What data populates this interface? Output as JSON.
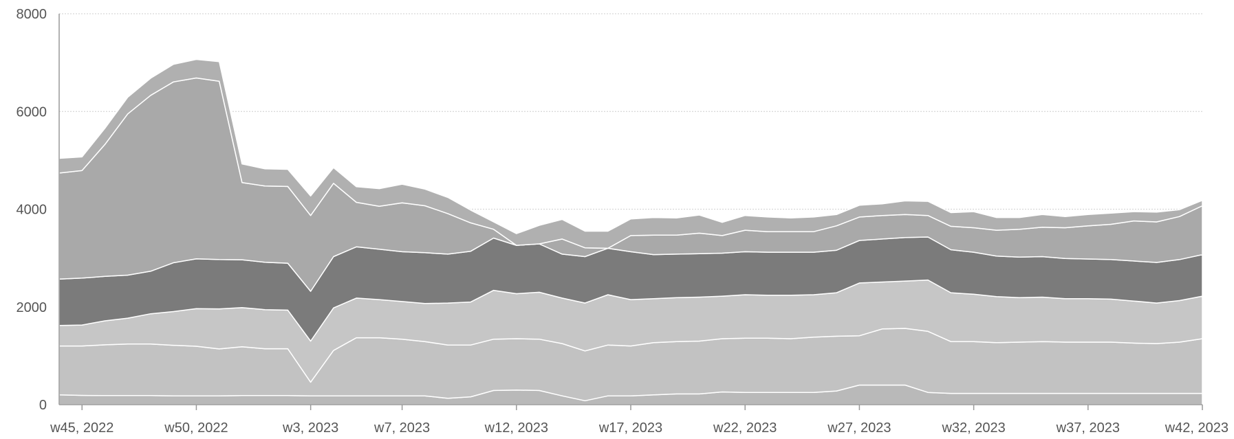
{
  "chart_data": {
    "type": "area",
    "stacked": true,
    "title": "",
    "xlabel": "",
    "ylabel": "",
    "ylim": [
      0,
      8000
    ],
    "y_ticks": [
      0,
      2000,
      4000,
      6000,
      8000
    ],
    "grid": true,
    "legend": "none",
    "x": [
      "w44, 2022",
      "w45, 2022",
      "w46, 2022",
      "w47, 2022",
      "w48, 2022",
      "w49, 2022",
      "w50, 2022",
      "w51, 2022",
      "w52, 2022",
      "w1, 2023",
      "w2, 2023",
      "w3, 2023",
      "w4, 2023",
      "w5, 2023",
      "w6, 2023",
      "w7, 2023",
      "w8, 2023",
      "w9, 2023",
      "w10, 2023",
      "w11, 2023",
      "w12, 2023",
      "w13, 2023",
      "w14, 2023",
      "w15, 2023",
      "w16, 2023",
      "w17, 2023",
      "w18, 2023",
      "w19, 2023",
      "w20, 2023",
      "w21, 2023",
      "w22, 2023",
      "w23, 2023",
      "w24, 2023",
      "w25, 2023",
      "w26, 2023",
      "w27, 2023",
      "w28, 2023",
      "w29, 2023",
      "w30, 2023",
      "w31, 2023",
      "w32, 2023",
      "w33, 2023",
      "w34, 2023",
      "w35, 2023",
      "w36, 2023",
      "w37, 2023",
      "w38, 2023",
      "w39, 2023",
      "w40, 2023",
      "w41, 2023",
      "w42, 2023"
    ],
    "x_tick_labels": [
      "w45, 2022",
      "w50, 2022",
      "w3, 2023",
      "w7, 2023",
      "w12, 2023",
      "w17, 2023",
      "w22, 2023",
      "w27, 2023",
      "w32, 2023",
      "w37, 2023",
      "w42, 2023"
    ],
    "colors": [
      "#b9b9b9",
      "#c2c2c2",
      "#c6c6c6",
      "#7b7b7b",
      "#a9a9a9",
      "#b0b0b0"
    ],
    "series": [
      {
        "values": [
          200,
          190,
          185,
          185,
          185,
          180,
          180,
          180,
          185,
          185,
          185,
          180,
          180,
          180,
          180,
          180,
          180,
          130,
          160,
          290,
          300,
          290,
          180,
          80,
          180,
          180,
          200,
          220,
          220,
          260,
          250,
          250,
          250,
          250,
          280,
          400,
          400,
          400,
          250,
          230,
          230,
          230,
          230,
          230,
          230,
          230,
          230,
          230,
          230,
          230,
          230
        ]
      },
      {
        "values": [
          1000,
          1010,
          1040,
          1055,
          1055,
          1035,
          1015,
          960,
          1000,
          960,
          960,
          280,
          930,
          1190,
          1190,
          1160,
          1110,
          1090,
          1060,
          1050,
          1050,
          1050,
          1070,
          1020,
          1040,
          1020,
          1070,
          1070,
          1080,
          1090,
          1110,
          1110,
          1100,
          1130,
          1120,
          1010,
          1150,
          1160,
          1250,
          1060,
          1060,
          1040,
          1050,
          1060,
          1050,
          1050,
          1050,
          1030,
          1020,
          1050,
          1120
        ]
      },
      {
        "values": [
          420,
          430,
          490,
          530,
          620,
          690,
          770,
          820,
          800,
          800,
          790,
          840,
          870,
          810,
          780,
          770,
          780,
          860,
          880,
          1000,
          920,
          960,
          930,
          980,
          1030,
          950,
          900,
          900,
          900,
          870,
          890,
          880,
          890,
          870,
          890,
          1080,
          960,
          970,
          1050,
          1000,
          970,
          940,
          910,
          910,
          890,
          890,
          880,
          860,
          830,
          850,
          870
        ]
      },
      {
        "values": [
          950,
          960,
          910,
          880,
          870,
          1000,
          1020,
          1010,
          980,
          970,
          960,
          1020,
          1050,
          1050,
          1030,
          1020,
          1040,
          1000,
          1040,
          1070,
          990,
          990,
          900,
          950,
          950,
          980,
          900,
          890,
          890,
          880,
          880,
          880,
          880,
          870,
          870,
          870,
          880,
          890,
          880,
          880,
          860,
          830,
          830,
          830,
          820,
          810,
          810,
          820,
          830,
          840,
          850
        ]
      },
      {
        "values": [
          2170,
          2200,
          2700,
          3300,
          3600,
          3700,
          3700,
          3650,
          1580,
          1560,
          1570,
          1550,
          1500,
          910,
          880,
          1000,
          960,
          830,
          580,
          180,
          0,
          0,
          310,
          180,
          0,
          330,
          400,
          390,
          420,
          360,
          440,
          420,
          420,
          420,
          500,
          480,
          480,
          470,
          440,
          480,
          500,
          530,
          570,
          600,
          630,
          680,
          720,
          820,
          830,
          880,
          1000
        ]
      },
      {
        "values": [
          300,
          280,
          330,
          340,
          350,
          360,
          380,
          400,
          380,
          350,
          350,
          400,
          320,
          320,
          360,
          380,
          340,
          330,
          260,
          150,
          240,
          380,
          400,
          340,
          350,
          340,
          360,
          350,
          370,
          270,
          300,
          300,
          280,
          300,
          230,
          240,
          240,
          280,
          290,
          280,
          330,
          260,
          240,
          260,
          230,
          230,
          230,
          190,
          200,
          140,
          110
        ]
      }
    ]
  }
}
